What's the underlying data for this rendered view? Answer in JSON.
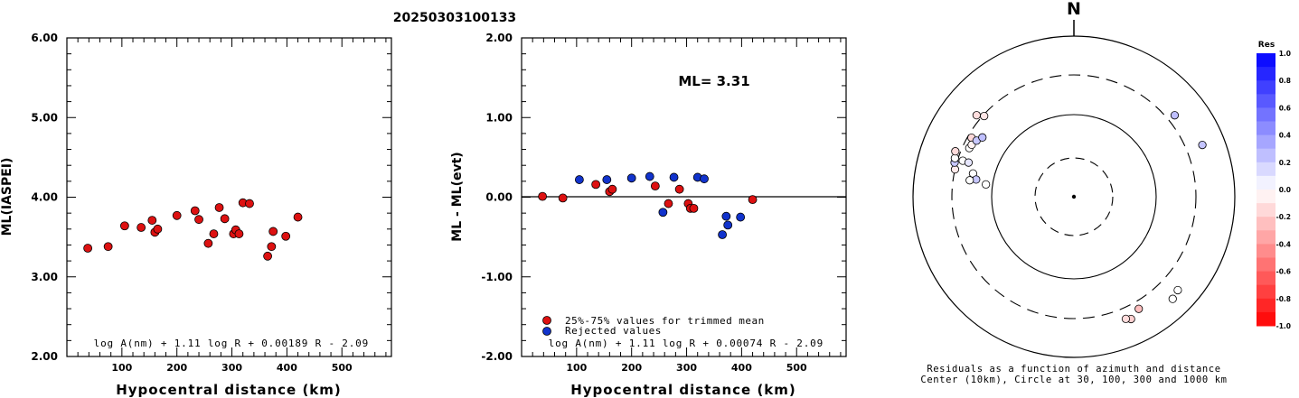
{
  "title": "20250303100133",
  "chart_data": [
    {
      "type": "scatter",
      "xlabel": "Hypocentral distance (km)",
      "ylabel": "ML(IASPEI)",
      "xlim": [
        0,
        590
      ],
      "ylim": [
        2.0,
        6.0
      ],
      "xticks": [
        100,
        200,
        300,
        400,
        500
      ],
      "xtick_labels": [
        "100",
        "200",
        "300",
        "400",
        "500"
      ],
      "yticks": [
        2.0,
        3.0,
        4.0,
        5.0,
        6.0
      ],
      "ytick_labels": [
        "2.00",
        "3.00",
        "4.00",
        "5.00",
        "6.00"
      ],
      "formula": "log A(nm) + 1.11 log R + 0.00189 R - 2.09",
      "point_color": "#dd1111",
      "series": [
        {
          "x": [
            38,
            75,
            105,
            135,
            155,
            160,
            165,
            200,
            233,
            240,
            257,
            267,
            277,
            287,
            303,
            307,
            313,
            320,
            332,
            365,
            372,
            375,
            398,
            420
          ],
          "y": [
            3.36,
            3.38,
            3.64,
            3.62,
            3.71,
            3.56,
            3.6,
            3.77,
            3.83,
            3.72,
            3.42,
            3.54,
            3.87,
            3.73,
            3.54,
            3.59,
            3.54,
            3.93,
            3.92,
            3.26,
            3.38,
            3.57,
            3.51,
            3.75
          ]
        }
      ]
    },
    {
      "type": "scatter",
      "xlabel": "Hypocentral distance (km)",
      "ylabel": "ML - ML(evt)",
      "xlim": [
        0,
        590
      ],
      "ylim": [
        -2.0,
        2.0
      ],
      "xticks": [
        100,
        200,
        300,
        400,
        500
      ],
      "xtick_labels": [
        "100",
        "200",
        "300",
        "400",
        "500"
      ],
      "yticks": [
        -2.0,
        -1.0,
        0.0,
        1.0,
        2.0
      ],
      "ytick_labels": [
        "-2.00",
        "-1.00",
        "0.00",
        "1.00",
        "2.00"
      ],
      "annotation": "ML= 3.31",
      "formula": "log A(nm) + 1.11 log R + 0.00074 R - 2.09",
      "legend": [
        "25%-75% values for trimmed mean",
        "Rejected values"
      ],
      "series": [
        {
          "name": "25%-75% values for trimmed mean",
          "color": "#dd1111",
          "x": [
            38,
            75,
            135,
            160,
            165,
            243,
            267,
            287,
            303,
            307,
            313,
            420
          ],
          "y": [
            0.01,
            -0.01,
            0.16,
            0.07,
            0.1,
            0.14,
            -0.08,
            0.1,
            -0.08,
            -0.14,
            -0.14,
            -0.03
          ]
        },
        {
          "name": "Rejected values",
          "color": "#1133cc",
          "x": [
            105,
            155,
            200,
            233,
            257,
            277,
            320,
            332,
            365,
            372,
            375,
            398
          ],
          "y": [
            0.22,
            0.22,
            0.24,
            0.26,
            -0.19,
            0.25,
            0.25,
            0.23,
            -0.47,
            -0.24,
            -0.35,
            -0.25
          ]
        }
      ]
    }
  ],
  "polar": {
    "north_label": "N",
    "caption_line1": "Residuals as a function of azimuth and distance",
    "caption_line2": "Center (10km), Circle at 30, 100, 300 and 1000 km",
    "points": [
      {
        "res": -0.1,
        "az": 312,
        "d": 290
      },
      {
        "res": 0.0,
        "az": 295,
        "d": 250
      },
      {
        "res": -0.15,
        "az": 300,
        "d": 270
      },
      {
        "res": -0.05,
        "az": 297,
        "d": 245
      },
      {
        "res": 0.22,
        "az": 300,
        "d": 230
      },
      {
        "res": 0.25,
        "az": 303,
        "d": 210
      },
      {
        "res": 0.0,
        "az": 288,
        "d": 260
      },
      {
        "res": 0.1,
        "az": 288,
        "d": 220
      },
      {
        "res": 0.0,
        "az": 283,
        "d": 180
      },
      {
        "res": 0.22,
        "az": 280,
        "d": 160
      },
      {
        "res": 0.0,
        "az": 278,
        "d": 120
      },
      {
        "res": 0.0,
        "az": 279,
        "d": 190
      },
      {
        "res": -0.08,
        "az": 283,
        "d": 300
      },
      {
        "res": 0.22,
        "az": 286,
        "d": 320
      },
      {
        "res": 0.0,
        "az": 288,
        "d": 330
      },
      {
        "res": -0.14,
        "az": 291,
        "d": 350
      },
      {
        "res": 0.25,
        "az": 51,
        "d": 380
      },
      {
        "res": 0.23,
        "az": 68,
        "d": 500
      },
      {
        "res": 0.0,
        "az": 132,
        "d": 520
      },
      {
        "res": 0.0,
        "az": 136,
        "d": 560
      },
      {
        "res": -0.19,
        "az": 155,
        "d": 450
      },
      {
        "res": -0.25,
        "az": 150,
        "d": 380
      },
      {
        "res": -0.14,
        "az": 157,
        "d": 420
      },
      {
        "res": -0.13,
        "az": 310,
        "d": 350
      }
    ]
  },
  "colorbar": {
    "title": "Res",
    "tick_labels": [
      "1.0",
      "0.8",
      "0.6",
      "0.4",
      "0.2",
      "0.0",
      "-0.2",
      "-0.4",
      "-0.6",
      "-0.8",
      "-1.0"
    ],
    "positive_color": "#0000ff",
    "negative_color": "#ff0000"
  }
}
